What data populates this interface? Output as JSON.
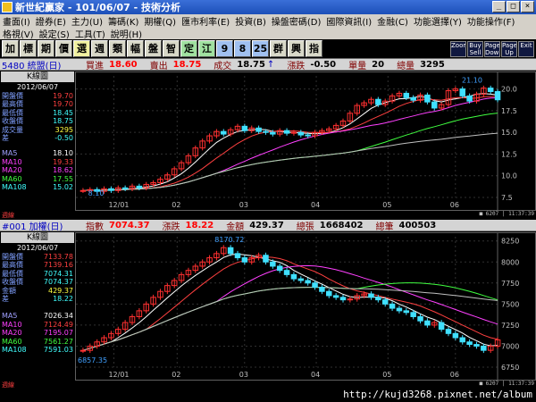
{
  "window": {
    "title": "新世紀贏家 - 101/06/07 - 技術分析",
    "buttons": [
      "_",
      "□",
      "×"
    ]
  },
  "menu1": [
    "畫面(I)",
    "證券(E)",
    "主力(U)",
    "籌碼(K)",
    "期權(Q)",
    "匯市利率(E)",
    "投資(B)",
    "操盤密碼(D)",
    "國際資訊(I)",
    "金融(C)",
    "功能選擇(Y)",
    "功能操作(F)"
  ],
  "menu2": [
    "格視(V)",
    "設定(S)",
    "工具(T)",
    "說明(H)"
  ],
  "toolbar": {
    "items": [
      "加",
      "標",
      "期",
      "價",
      "選",
      "週",
      "類",
      "幅",
      "盤",
      "智",
      "定",
      "江",
      "9",
      "8",
      "25",
      "群",
      "興",
      "指"
    ],
    "right": [
      "Zoom",
      "Buy Sell",
      "Page Down",
      "Page Up",
      "Exit"
    ]
  },
  "panel1": {
    "code": "5480 統盟(日)",
    "info": [
      {
        "label": "買進",
        "value": "18.60"
      },
      {
        "label": "賣出",
        "value": "18.75"
      },
      {
        "label": "成交",
        "value": "18.75",
        "arrow": "↑"
      },
      {
        "label": "漲跌",
        "value": "-0.50"
      },
      {
        "label": "單量",
        "value": "20"
      },
      {
        "label": "總量",
        "value": "3295"
      }
    ],
    "kline": "K線圖",
    "date": "2012/06/07",
    "ohlc": [
      {
        "k": "開盤價",
        "v": "19.70"
      },
      {
        "k": "最高價",
        "v": "19.70"
      },
      {
        "k": "最低價",
        "v": "18.45"
      },
      {
        "k": "收盤價",
        "v": "18.75"
      },
      {
        "k": "成交量",
        "v": "3295"
      },
      {
        "k": "差",
        "v": "-0.50"
      }
    ],
    "ma": [
      {
        "k": "MA5",
        "v": "18.10"
      },
      {
        "k": "MA10",
        "v": "19.33"
      },
      {
        "k": "MA20",
        "v": "18.62"
      },
      {
        "k": "MA60",
        "v": "17.55"
      },
      {
        "k": "MA108",
        "v": "15.02"
      }
    ],
    "yticks": [
      "20.0",
      "17.5",
      "15.0",
      "12.5",
      "10.0",
      "7.5"
    ],
    "xticks": [
      "12/01",
      "02",
      "03",
      "04",
      "05",
      "06"
    ],
    "high_label": "21.10",
    "low_label": "8.10",
    "status_label": "週線",
    "status_text": "■ 6207 | 11:37:39"
  },
  "panel2": {
    "code": "#001 加權(日)",
    "info": [
      {
        "label": "指數",
        "value": "7074.37"
      },
      {
        "label": "漲跌",
        "value": "18.22"
      },
      {
        "label": "金額",
        "value": "429.37"
      },
      {
        "label": "總張",
        "value": "1668402"
      },
      {
        "label": "總筆",
        "value": "400503"
      }
    ],
    "kline": "K線圖",
    "date": "2012/06/07",
    "ohlc": [
      {
        "k": "開盤價",
        "v": "7133.78"
      },
      {
        "k": "最高價",
        "v": "7139.16"
      },
      {
        "k": "最低價",
        "v": "7074.31"
      },
      {
        "k": "收盤價",
        "v": "7074.37"
      },
      {
        "k": "金額",
        "v": "429.37"
      },
      {
        "k": "差",
        "v": "18.22"
      }
    ],
    "ma": [
      {
        "k": "MA5",
        "v": "7026.34"
      },
      {
        "k": "MA10",
        "v": "7124.49"
      },
      {
        "k": "MA20",
        "v": "7195.07"
      },
      {
        "k": "MA60",
        "v": "7561.27"
      },
      {
        "k": "MA108",
        "v": "7591.03"
      }
    ],
    "yticks": [
      "8250",
      "8000",
      "7750",
      "7500",
      "7250",
      "7000",
      "6750"
    ],
    "xticks": [
      "12/01",
      "02",
      "03",
      "04",
      "05",
      "06"
    ],
    "high_label": "8170.72",
    "low_label": "6857.35",
    "status_label": "週線",
    "status_text": "■ 6207 | 11:37:39"
  },
  "watermark": "http://kujd3268.pixnet.net/album",
  "colors": {
    "up": "#ff3030",
    "down": "#40e0ff",
    "ma5": "#ffffff",
    "ma10": "#ff4040",
    "ma20": "#ff40ff",
    "ma60": "#40ff40",
    "ma108": "#c0c0c0"
  },
  "chart_data": [
    {
      "type": "candlestick",
      "title": "5480 統盟(日)",
      "ylim": [
        7.5,
        21.5
      ],
      "x_labels": [
        "12/01",
        "02",
        "03",
        "04",
        "05",
        "06"
      ],
      "close": [
        8.3,
        8.4,
        8.2,
        8.5,
        8.3,
        8.6,
        8.5,
        8.8,
        8.6,
        9.0,
        9.2,
        9.6,
        10.1,
        10.8,
        11.5,
        12.3,
        13.2,
        14.0,
        14.6,
        15.1,
        14.8,
        15.3,
        15.7,
        15.2,
        15.5,
        15.1,
        15.0,
        14.8,
        15.2,
        14.9,
        15.0,
        14.7,
        14.6,
        15.0,
        15.2,
        15.4,
        15.8,
        16.3,
        17.2,
        18.1,
        18.4,
        18.8,
        18.2,
        18.6,
        19.2,
        19.5,
        19.0,
        18.7,
        19.3,
        18.5,
        17.8,
        18.2,
        19.8,
        20.0,
        19.2,
        18.6,
        19.4,
        20.1,
        19.7,
        18.75
      ],
      "ma_current": {
        "MA5": 18.1,
        "MA10": 19.33,
        "MA20": 18.62,
        "MA60": 17.55,
        "MA108": 15.02
      }
    },
    {
      "type": "candlestick",
      "title": "#001 加權(日)",
      "ylim": [
        6750,
        8300
      ],
      "x_labels": [
        "12/01",
        "02",
        "03",
        "04",
        "05",
        "06"
      ],
      "close": [
        6950,
        7000,
        7050,
        7100,
        7150,
        7200,
        7280,
        7350,
        7420,
        7500,
        7580,
        7650,
        7720,
        7780,
        7850,
        7900,
        7950,
        8000,
        8050,
        8100,
        8170,
        8100,
        8050,
        8000,
        8050,
        8080,
        8000,
        7950,
        7900,
        7850,
        7800,
        7780,
        7750,
        7700,
        7650,
        7600,
        7580,
        7550,
        7560,
        7600,
        7620,
        7580,
        7550,
        7500,
        7450,
        7420,
        7400,
        7350,
        7300,
        7250,
        7280,
        7200,
        7150,
        7100,
        7050,
        7020,
        7000,
        6950,
        7000,
        7074
      ],
      "ma_current": {
        "MA5": 7026.34,
        "MA10": 7124.49,
        "MA20": 7195.07,
        "MA60": 7561.27,
        "MA108": 7591.03
      }
    }
  ]
}
